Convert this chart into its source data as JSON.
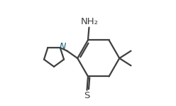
{
  "bg_color": "#ffffff",
  "line_color": "#404040",
  "line_width": 1.6,
  "N_color": "#1a5c7a",
  "S_color": "#404040",
  "text_color": "#404040",
  "NH2_label": "NH₂",
  "S_label": "S",
  "N_label": "N",
  "figsize": [
    2.48,
    1.49
  ],
  "dpi": 100
}
